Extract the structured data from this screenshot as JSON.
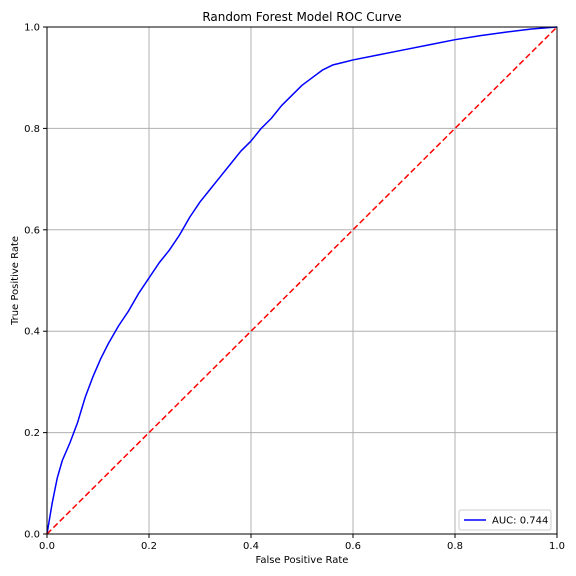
{
  "chart_data": {
    "type": "line",
    "title": "Random Forest Model ROC Curve",
    "xlabel": "False Positive Rate",
    "ylabel": "True Positive Rate",
    "xlim": [
      0,
      1
    ],
    "ylim": [
      0,
      1
    ],
    "grid": true,
    "x_ticks": [
      "0.0",
      "0.2",
      "0.4",
      "0.6",
      "0.8",
      "1.0"
    ],
    "y_ticks": [
      "0.0",
      "0.2",
      "0.4",
      "0.6",
      "0.8",
      "1.0"
    ],
    "legend_position": "lower-right",
    "series": [
      {
        "name": "AUC: 0.744",
        "color": "#0000ff",
        "style": "solid",
        "x": [
          0.0,
          0.005,
          0.01,
          0.02,
          0.03,
          0.045,
          0.06,
          0.075,
          0.09,
          0.105,
          0.12,
          0.14,
          0.16,
          0.18,
          0.2,
          0.22,
          0.24,
          0.26,
          0.28,
          0.3,
          0.32,
          0.34,
          0.36,
          0.38,
          0.4,
          0.42,
          0.44,
          0.46,
          0.48,
          0.5,
          0.52,
          0.54,
          0.56,
          0.58,
          0.6,
          0.65,
          0.7,
          0.75,
          0.8,
          0.85,
          0.9,
          0.95,
          1.0
        ],
        "y": [
          0.0,
          0.03,
          0.06,
          0.11,
          0.145,
          0.18,
          0.22,
          0.27,
          0.31,
          0.345,
          0.375,
          0.41,
          0.44,
          0.475,
          0.505,
          0.535,
          0.56,
          0.59,
          0.625,
          0.655,
          0.68,
          0.705,
          0.73,
          0.755,
          0.775,
          0.8,
          0.82,
          0.845,
          0.865,
          0.885,
          0.9,
          0.915,
          0.925,
          0.93,
          0.935,
          0.945,
          0.955,
          0.965,
          0.975,
          0.983,
          0.99,
          0.996,
          1.0
        ]
      },
      {
        "name": "",
        "color": "#ff0000",
        "style": "dashed",
        "x": [
          0,
          1
        ],
        "y": [
          0,
          1
        ]
      }
    ]
  }
}
